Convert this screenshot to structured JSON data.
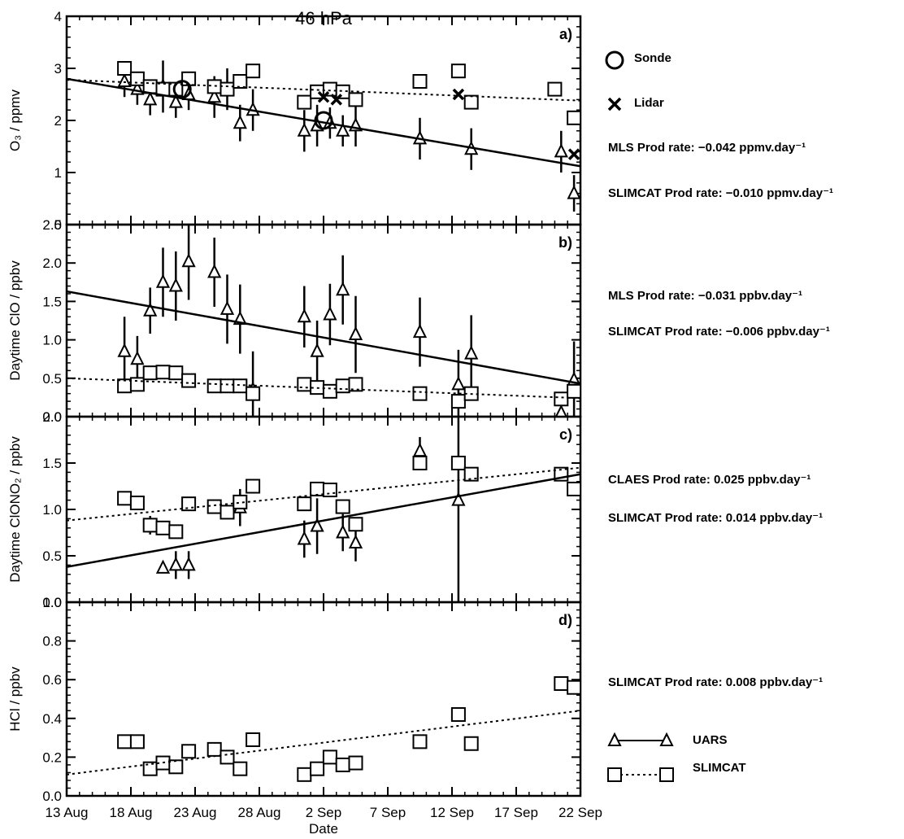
{
  "title": "46 hPa",
  "xlabel": "Date",
  "x_tick_labels": [
    "13 Aug",
    "18 Aug",
    "23 Aug",
    "28 Aug",
    "2 Sep",
    "7 Sep",
    "12 Sep",
    "17 Sep",
    "22 Sep"
  ],
  "legend": {
    "sonde": "Sonde",
    "lidar": "Lidar",
    "uars": "UARS",
    "slimcat": "SLIMCAT"
  },
  "panels": [
    {
      "label": "a)",
      "ylabel": "O₃ / ppmv",
      "ylim": [
        0,
        4
      ],
      "ytick_labels": [
        "0",
        "1",
        "2",
        "3",
        "4"
      ],
      "rates": [
        "MLS Prod rate: −0.042 ppmv.day⁻¹",
        "SLIMCAT Prod rate: −0.010 ppmv.day⁻¹"
      ]
    },
    {
      "label": "b)",
      "ylabel": "Daytime ClO / ppbv",
      "ylim": [
        0,
        2.5
      ],
      "ytick_labels": [
        "0.0",
        "0.5",
        "1.0",
        "1.5",
        "2.0",
        "2.5"
      ],
      "rates": [
        "MLS Prod rate: −0.031 ppbv.day⁻¹",
        "SLIMCAT Prod rate: −0.006 ppbv.day⁻¹"
      ]
    },
    {
      "label": "c)",
      "ylabel": "Daytime ClONO₂ / ppbv",
      "ylim": [
        0,
        2
      ],
      "ytick_labels": [
        "0.0",
        "0.5",
        "1.0",
        "1.5",
        "2.0"
      ],
      "rates": [
        "CLAES Prod rate: 0.025 ppbv.day⁻¹",
        "SLIMCAT Prod rate: 0.014 ppbv.day⁻¹"
      ]
    },
    {
      "label": "d)",
      "ylabel": "HCl / ppbv",
      "ylim": [
        0,
        1
      ],
      "ytick_labels": [
        "0.0",
        "0.2",
        "0.4",
        "0.6",
        "0.8",
        "1.0"
      ],
      "rates": [
        "SLIMCAT Prod rate: 0.008 ppbv.day⁻¹"
      ]
    }
  ],
  "chart_data": {
    "type": "scatter",
    "title": "46 hPa",
    "xlabel": "Date",
    "x_range": [
      "13 Aug",
      "22 Sep"
    ],
    "x_categories": [
      "13 Aug",
      "18 Aug",
      "23 Aug",
      "28 Aug",
      "2 Sep",
      "7 Sep",
      "12 Sep",
      "17 Sep",
      "22 Sep"
    ],
    "panels": [
      {
        "panel": "a)",
        "ylabel": "O₃ / ppmv",
        "ylim": [
          0,
          4
        ],
        "series": [
          {
            "name": "UARS",
            "marker": "triangle",
            "points": [
              {
                "x": "17.5 Aug",
                "y": 2.75,
                "err": 0.3
              },
              {
                "x": "18.5 Aug",
                "y": 2.6,
                "err": 0.3
              },
              {
                "x": "19.5 Aug",
                "y": 2.4,
                "err": 0.3
              },
              {
                "x": "20.5 Aug",
                "y": 2.65,
                "err": 0.5
              },
              {
                "x": "21.5 Aug",
                "y": 2.35,
                "err": 0.3
              },
              {
                "x": "22.5 Aug",
                "y": 2.5,
                "err": 0.3
              },
              {
                "x": "24.5 Aug",
                "y": 2.45,
                "err": 0.4
              },
              {
                "x": "25.5 Aug",
                "y": 2.6,
                "err": 0.4
              },
              {
                "x": "26.5 Aug",
                "y": 1.95,
                "err": 0.35
              },
              {
                "x": "27.5 Aug",
                "y": 2.2,
                "err": 0.4
              },
              {
                "x": "31.5 Aug",
                "y": 1.8,
                "err": 0.4
              },
              {
                "x": "1.5 Sep",
                "y": 1.9,
                "err": 0.4
              },
              {
                "x": "2.5 Sep",
                "y": 1.95,
                "err": 0.3
              },
              {
                "x": "3.5 Sep",
                "y": 1.8,
                "err": 0.3
              },
              {
                "x": "4.5 Sep",
                "y": 1.9,
                "err": 0.4
              },
              {
                "x": "9.5 Sep",
                "y": 1.65,
                "err": 0.4
              },
              {
                "x": "13.5 Sep",
                "y": 1.45,
                "err": 0.4
              },
              {
                "x": "20.5 Sep",
                "y": 1.4,
                "err": 0.4
              },
              {
                "x": "21.5 Sep",
                "y": 0.6,
                "err": 0.35
              }
            ]
          },
          {
            "name": "SLIMCAT",
            "marker": "square",
            "points": [
              {
                "x": "17.5 Aug",
                "y": 3.0
              },
              {
                "x": "18.5 Aug",
                "y": 2.8
              },
              {
                "x": "19.5 Aug",
                "y": 2.65
              },
              {
                "x": "20.5 Aug",
                "y": 2.6
              },
              {
                "x": "21.5 Aug",
                "y": 2.6
              },
              {
                "x": "22.5 Aug",
                "y": 2.8
              },
              {
                "x": "24.5 Aug",
                "y": 2.65
              },
              {
                "x": "25.5 Aug",
                "y": 2.6
              },
              {
                "x": "26.5 Aug",
                "y": 2.75
              },
              {
                "x": "27.5 Aug",
                "y": 2.95
              },
              {
                "x": "31.5 Aug",
                "y": 2.35
              },
              {
                "x": "1.5 Sep",
                "y": 2.55
              },
              {
                "x": "2.5 Sep",
                "y": 2.6
              },
              {
                "x": "3.5 Sep",
                "y": 2.55
              },
              {
                "x": "4.5 Sep",
                "y": 2.4
              },
              {
                "x": "9.5 Sep",
                "y": 2.75
              },
              {
                "x": "12.5 Sep",
                "y": 2.95
              },
              {
                "x": "13.5 Sep",
                "y": 2.35
              },
              {
                "x": "20 Sep",
                "y": 2.6
              },
              {
                "x": "21.5 Sep",
                "y": 2.05
              }
            ]
          },
          {
            "name": "Sonde",
            "marker": "circle",
            "points": [
              {
                "x": "22 Aug",
                "y": 2.6
              },
              {
                "x": "2 Sep",
                "y": 2.0
              }
            ]
          },
          {
            "name": "Lidar",
            "marker": "x",
            "points": [
              {
                "x": "2 Sep",
                "y": 2.45
              },
              {
                "x": "3 Sep",
                "y": 2.4
              },
              {
                "x": "12.5 Sep",
                "y": 2.5
              },
              {
                "x": "21.5 Sep",
                "y": 1.35
              }
            ]
          },
          {
            "name": "MLS fit",
            "line": "solid",
            "points": [
              {
                "x": "13 Aug",
                "y": 2.8
              },
              {
                "x": "22 Sep",
                "y": 1.12
              }
            ]
          },
          {
            "name": "SLIMCAT fit",
            "line": "dotted",
            "points": [
              {
                "x": "13 Aug",
                "y": 2.78
              },
              {
                "x": "22 Sep",
                "y": 2.38
              }
            ]
          }
        ]
      },
      {
        "panel": "b)",
        "ylabel": "Daytime ClO / ppbv",
        "ylim": [
          0,
          2.5
        ],
        "series": [
          {
            "name": "UARS",
            "marker": "triangle",
            "points": [
              {
                "x": "17.5 Aug",
                "y": 0.85,
                "err": 0.45
              },
              {
                "x": "18.5 Aug",
                "y": 0.75,
                "err": 0.3
              },
              {
                "x": "19.5 Aug",
                "y": 1.38,
                "err": 0.3
              },
              {
                "x": "20.5 Aug",
                "y": 1.75,
                "err": 0.45
              },
              {
                "x": "21.5 Aug",
                "y": 1.7,
                "err": 0.45
              },
              {
                "x": "22.5 Aug",
                "y": 2.02,
                "err": 0.5
              },
              {
                "x": "24.5 Aug",
                "y": 1.88,
                "err": 0.45
              },
              {
                "x": "25.5 Aug",
                "y": 1.4,
                "err": 0.45
              },
              {
                "x": "26.5 Aug",
                "y": 1.27,
                "err": 0.45
              },
              {
                "x": "27.5 Aug",
                "y": 0.35,
                "err": 0.5
              },
              {
                "x": "31.5 Aug",
                "y": 1.3,
                "err": 0.4
              },
              {
                "x": "1.5 Sep",
                "y": 0.85,
                "err": 0.4
              },
              {
                "x": "2.5 Sep",
                "y": 1.33,
                "err": 0.4
              },
              {
                "x": "3.5 Sep",
                "y": 1.65,
                "err": 0.45
              },
              {
                "x": "4.5 Sep",
                "y": 1.07,
                "err": 0.5
              },
              {
                "x": "9.5 Sep",
                "y": 1.1,
                "err": 0.45
              },
              {
                "x": "12.5 Sep",
                "y": 0.42,
                "err": 0.45
              },
              {
                "x": "13.5 Sep",
                "y": 0.82,
                "err": 0.5
              },
              {
                "x": "20.5 Sep",
                "y": 0.05,
                "err": 0.1
              },
              {
                "x": "21.5 Sep",
                "y": 0.48,
                "err": 0.5
              }
            ]
          },
          {
            "name": "SLIMCAT",
            "marker": "square",
            "points": [
              {
                "x": "17.5 Aug",
                "y": 0.4
              },
              {
                "x": "18.5 Aug",
                "y": 0.42
              },
              {
                "x": "19.5 Aug",
                "y": 0.57
              },
              {
                "x": "20.5 Aug",
                "y": 0.58
              },
              {
                "x": "21.5 Aug",
                "y": 0.57
              },
              {
                "x": "22.5 Aug",
                "y": 0.47
              },
              {
                "x": "24.5 Aug",
                "y": 0.4
              },
              {
                "x": "25.5 Aug",
                "y": 0.4
              },
              {
                "x": "26.5 Aug",
                "y": 0.4
              },
              {
                "x": "27.5 Aug",
                "y": 0.3
              },
              {
                "x": "31.5 Aug",
                "y": 0.42
              },
              {
                "x": "1.5 Sep",
                "y": 0.38
              },
              {
                "x": "2.5 Sep",
                "y": 0.33
              },
              {
                "x": "3.5 Sep",
                "y": 0.4
              },
              {
                "x": "4.5 Sep",
                "y": 0.42
              },
              {
                "x": "9.5 Sep",
                "y": 0.3
              },
              {
                "x": "12.5 Sep",
                "y": 0.2
              },
              {
                "x": "13.5 Sep",
                "y": 0.3
              },
              {
                "x": "20.5 Sep",
                "y": 0.23
              },
              {
                "x": "21.5 Sep",
                "y": 0.33
              }
            ]
          },
          {
            "name": "MLS fit",
            "line": "solid",
            "points": [
              {
                "x": "13 Aug",
                "y": 1.63
              },
              {
                "x": "22 Sep",
                "y": 0.43
              }
            ]
          },
          {
            "name": "SLIMCAT fit",
            "line": "dotted",
            "points": [
              {
                "x": "13 Aug",
                "y": 0.5
              },
              {
                "x": "22 Sep",
                "y": 0.24
              }
            ]
          }
        ]
      },
      {
        "panel": "c)",
        "ylabel": "Daytime ClONO₂ / ppbv",
        "ylim": [
          0,
          2
        ],
        "series": [
          {
            "name": "UARS",
            "marker": "triangle",
            "points": [
              {
                "x": "19.5 Aug",
                "y": 0.83,
                "err": 0.1
              },
              {
                "x": "20.5 Aug",
                "y": 0.37,
                "err": 0.05
              },
              {
                "x": "21.5 Aug",
                "y": 0.4,
                "err": 0.15
              },
              {
                "x": "22.5 Aug",
                "y": 0.4,
                "err": 0.15
              },
              {
                "x": "26.5 Aug",
                "y": 1.02,
                "err": 0.2
              },
              {
                "x": "31.5 Aug",
                "y": 0.68,
                "err": 0.2
              },
              {
                "x": "1.5 Sep",
                "y": 0.82,
                "err": 0.3
              },
              {
                "x": "3.5 Sep",
                "y": 0.75,
                "err": 0.2
              },
              {
                "x": "4.5 Sep",
                "y": 0.64,
                "err": 0.2
              },
              {
                "x": "9.5 Sep",
                "y": 1.63,
                "err": 0.15
              },
              {
                "x": "12.5 Sep",
                "y": 1.1,
                "err": 1.1
              }
            ]
          },
          {
            "name": "SLIMCAT",
            "marker": "square",
            "points": [
              {
                "x": "17.5 Aug",
                "y": 1.12
              },
              {
                "x": "18.5 Aug",
                "y": 1.07
              },
              {
                "x": "19.5 Aug",
                "y": 0.83
              },
              {
                "x": "20.5 Aug",
                "y": 0.8
              },
              {
                "x": "21.5 Aug",
                "y": 0.76
              },
              {
                "x": "22.5 Aug",
                "y": 1.06
              },
              {
                "x": "24.5 Aug",
                "y": 1.03
              },
              {
                "x": "25.5 Aug",
                "y": 0.97
              },
              {
                "x": "26.5 Aug",
                "y": 1.08
              },
              {
                "x": "27.5 Aug",
                "y": 1.25
              },
              {
                "x": "31.5 Aug",
                "y": 1.06
              },
              {
                "x": "1.5 Sep",
                "y": 1.22
              },
              {
                "x": "2.5 Sep",
                "y": 1.21
              },
              {
                "x": "3.5 Sep",
                "y": 1.03
              },
              {
                "x": "4.5 Sep",
                "y": 0.84
              },
              {
                "x": "9.5 Sep",
                "y": 1.5
              },
              {
                "x": "12.5 Sep",
                "y": 1.5
              },
              {
                "x": "13.5 Sep",
                "y": 1.38
              },
              {
                "x": "20.5 Sep",
                "y": 1.38
              },
              {
                "x": "21.5 Sep",
                "y": 1.22
              }
            ]
          },
          {
            "name": "CLAES fit",
            "line": "solid",
            "points": [
              {
                "x": "13 Aug",
                "y": 0.38
              },
              {
                "x": "22 Sep",
                "y": 1.38
              }
            ]
          },
          {
            "name": "SLIMCAT fit",
            "line": "dotted",
            "points": [
              {
                "x": "13 Aug",
                "y": 0.88
              },
              {
                "x": "22 Sep",
                "y": 1.45
              }
            ]
          }
        ]
      },
      {
        "panel": "d)",
        "ylabel": "HCl / ppbv",
        "ylim": [
          0,
          1
        ],
        "series": [
          {
            "name": "SLIMCAT",
            "marker": "square",
            "points": [
              {
                "x": "17.5 Aug",
                "y": 0.28
              },
              {
                "x": "18.5 Aug",
                "y": 0.28
              },
              {
                "x": "19.5 Aug",
                "y": 0.14
              },
              {
                "x": "20.5 Aug",
                "y": 0.17
              },
              {
                "x": "21.5 Aug",
                "y": 0.15
              },
              {
                "x": "22.5 Aug",
                "y": 0.23
              },
              {
                "x": "24.5 Aug",
                "y": 0.24
              },
              {
                "x": "25.5 Aug",
                "y": 0.2
              },
              {
                "x": "26.5 Aug",
                "y": 0.14
              },
              {
                "x": "27.5 Aug",
                "y": 0.29
              },
              {
                "x": "31.5 Aug",
                "y": 0.11
              },
              {
                "x": "1.5 Sep",
                "y": 0.14
              },
              {
                "x": "2.5 Sep",
                "y": 0.2
              },
              {
                "x": "3.5 Sep",
                "y": 0.16
              },
              {
                "x": "4.5 Sep",
                "y": 0.17
              },
              {
                "x": "9.5 Sep",
                "y": 0.28
              },
              {
                "x": "12.5 Sep",
                "y": 0.42
              },
              {
                "x": "13.5 Sep",
                "y": 0.27
              },
              {
                "x": "20.5 Sep",
                "y": 0.58
              },
              {
                "x": "21.5 Sep",
                "y": 0.56
              }
            ]
          },
          {
            "name": "SLIMCAT fit",
            "line": "dotted",
            "points": [
              {
                "x": "13 Aug",
                "y": 0.11
              },
              {
                "x": "22 Sep",
                "y": 0.44
              }
            ]
          }
        ]
      }
    ]
  }
}
